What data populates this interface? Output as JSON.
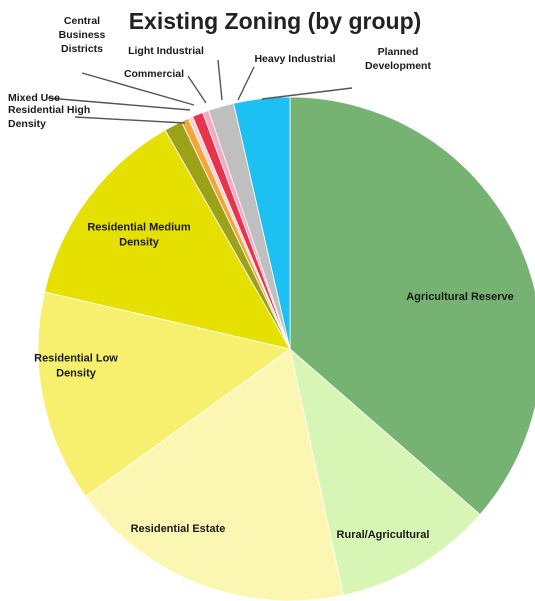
{
  "chart_data": {
    "type": "pie",
    "title": "Existing Zoning (by group)",
    "slices": [
      {
        "label": "Agricultural Reserve",
        "value": 37.5,
        "color": "#76b372"
      },
      {
        "label": "Rural/Agricultural",
        "value": 10.5,
        "color": "#d7f5b5"
      },
      {
        "label": "Residential Estate",
        "value": 19.0,
        "color": "#fbf7b2"
      },
      {
        "label": "Residential Low Density",
        "value": 14.0,
        "color": "#f7f06e"
      },
      {
        "label": "Residential Medium Density",
        "value": 13.5,
        "color": "#e6e000"
      },
      {
        "label": "Residential High Density",
        "value": 1.2,
        "color": "#9ca218"
      },
      {
        "label": "Mixed Use",
        "value": 0.5,
        "color": "#f3a53a"
      },
      {
        "label": "Central Business Districts",
        "value": 0.3,
        "color": "#f7d3d3"
      },
      {
        "label": "Commercial",
        "value": 0.7,
        "color": "#e8334f"
      },
      {
        "label": "Light Industrial",
        "value": 0.4,
        "color": "#f7a9c1"
      },
      {
        "label": "Heavy Industrial",
        "value": 1.7,
        "color": "#bfbfbf"
      },
      {
        "label": "Planned Development",
        "value": 3.7,
        "color": "#1cc0f2"
      }
    ]
  }
}
